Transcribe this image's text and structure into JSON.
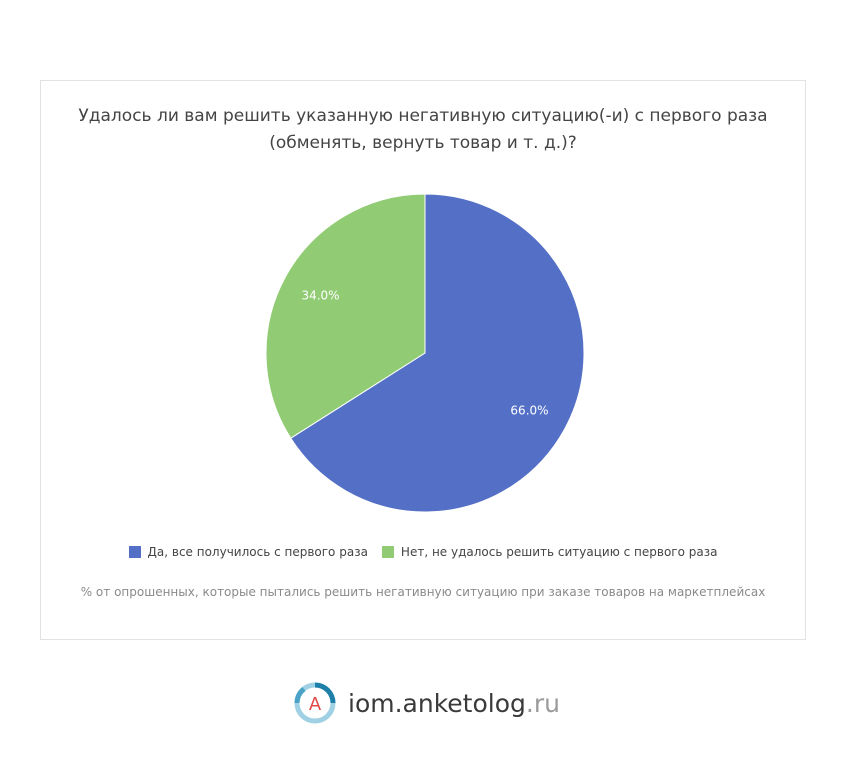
{
  "chart_data": {
    "type": "pie",
    "title": "Удалось ли вам решить указанную негативную ситуацию(-и) с первого раза (обменять, вернуть товар и т. д.)?",
    "slices": [
      {
        "label": "Да, все получилось с первого раза",
        "value": 66.0,
        "display": "66.0%",
        "color": "#5470c6"
      },
      {
        "label": "Нет, не удалось решить ситуацию с первого раза",
        "value": 34.0,
        "display": "34.0%",
        "color": "#91cc75"
      }
    ],
    "legend_position": "bottom",
    "note": "% от опрошенных, которые пытались решить негативную ситуацию при заказе товаров на маркетплейсах"
  },
  "brand": {
    "logo_letter": "A",
    "name": "iom.anketolog",
    "tld": ".ru"
  }
}
